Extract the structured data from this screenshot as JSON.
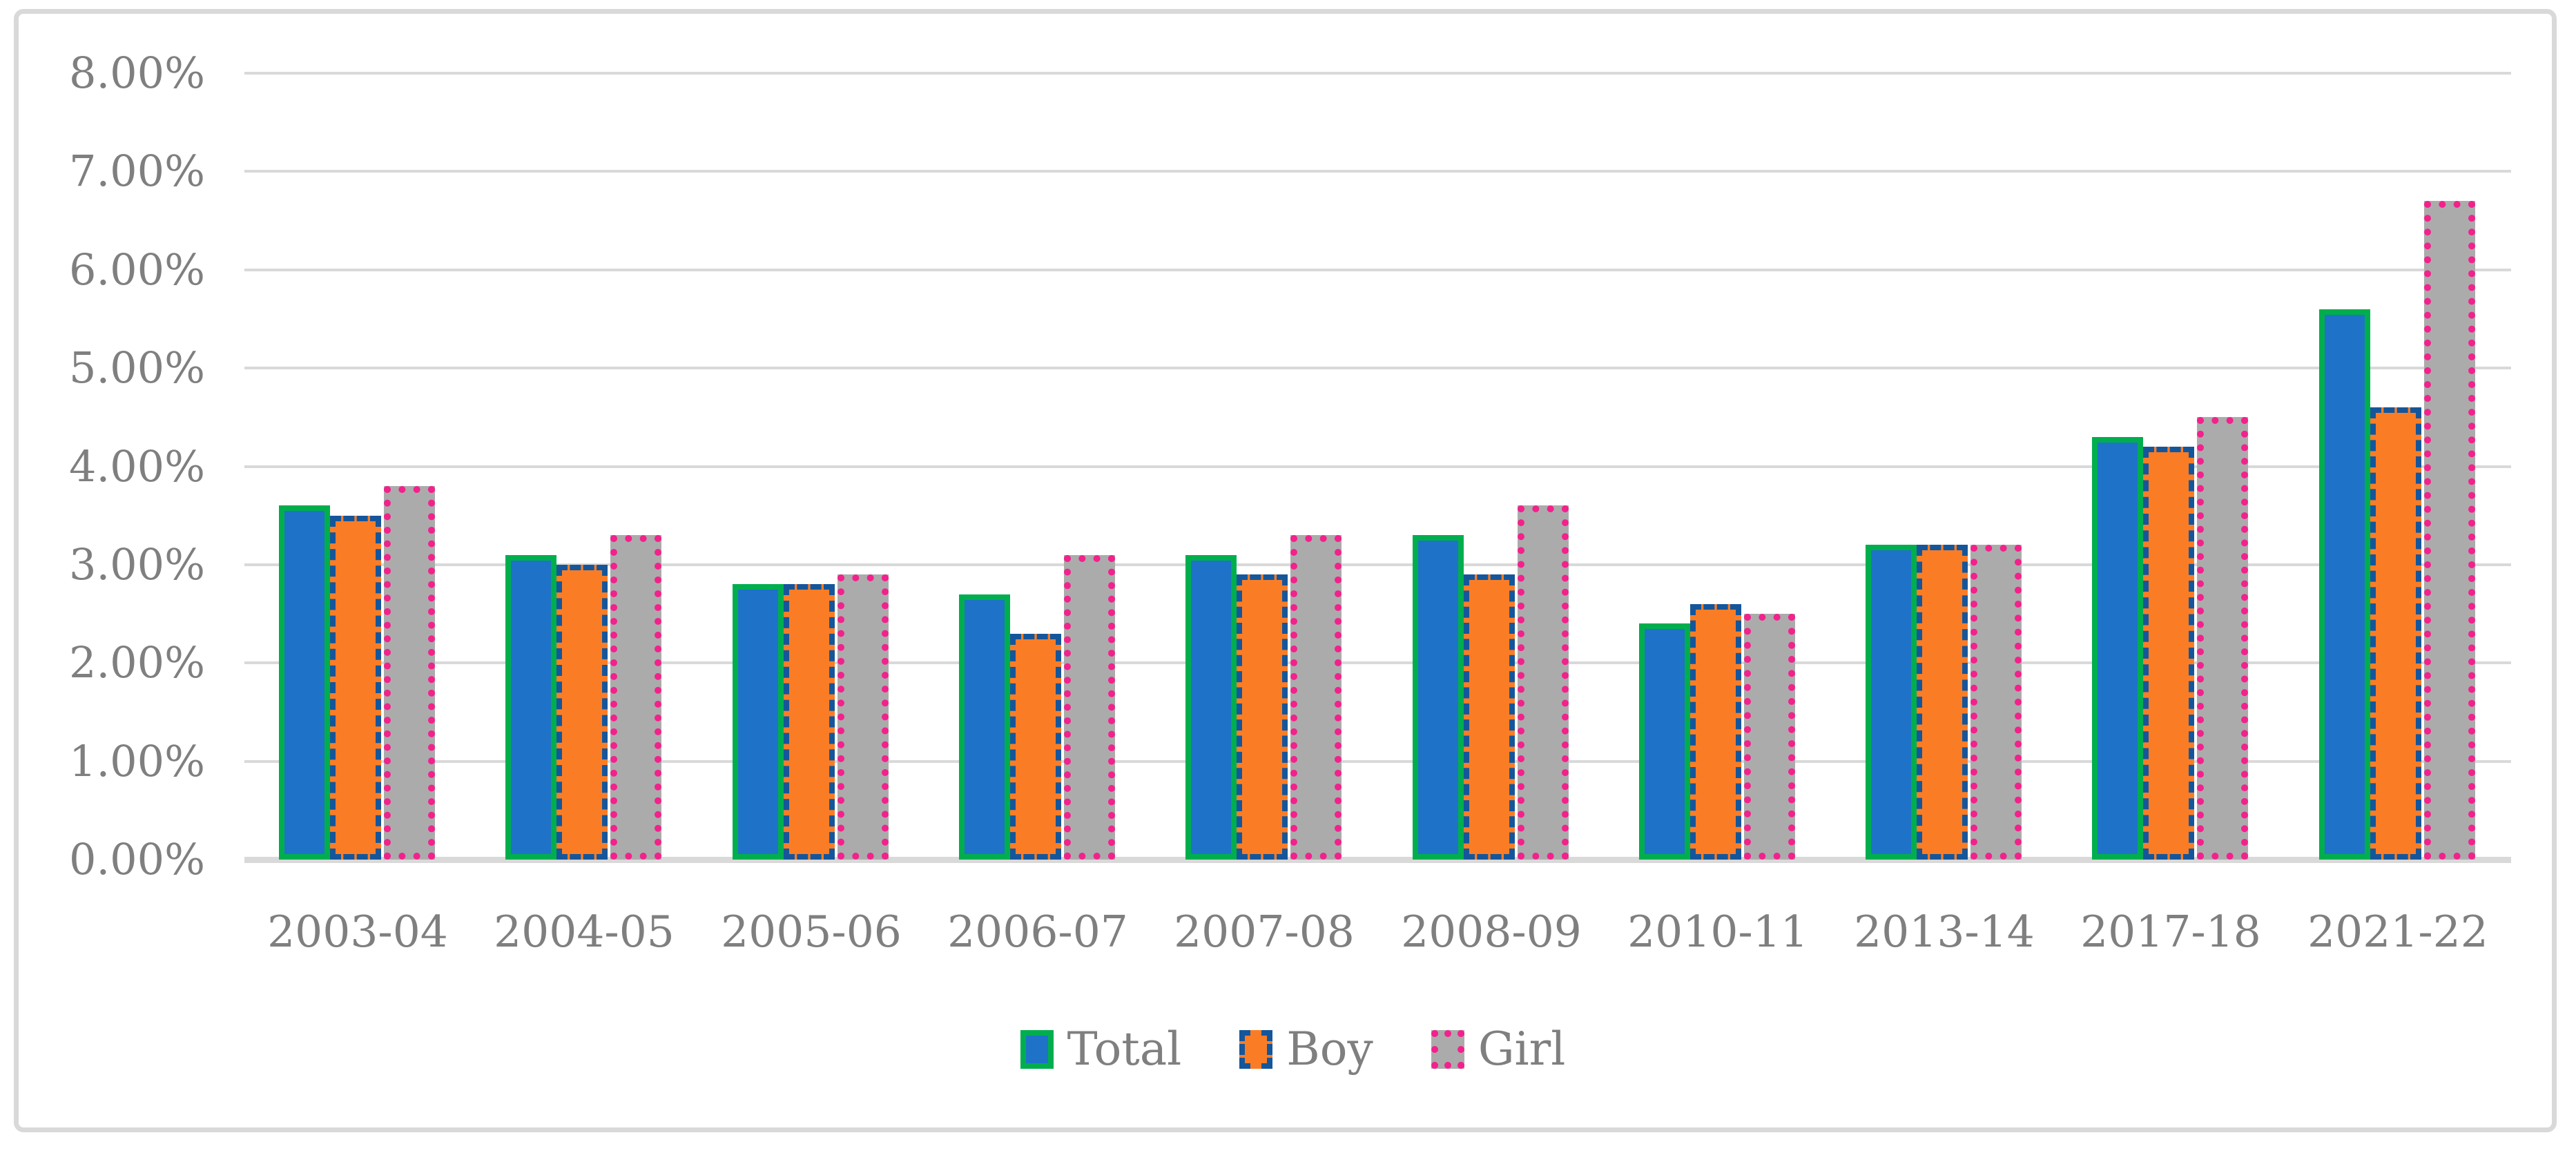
{
  "figure": {
    "background": "#FFFFFF",
    "border_color": "#D9D9D9",
    "text_color": "#7F7F7F",
    "gridline_color": "#D9D9D9"
  },
  "chart_data": {
    "type": "bar",
    "title": "",
    "xlabel": "",
    "ylabel": "",
    "categories": [
      "2003-04",
      "2004-05",
      "2005-06",
      "2006-07",
      "2007-08",
      "2008-09",
      "2010-11",
      "2013-14",
      "2017-18",
      "2021-22"
    ],
    "series": [
      {
        "name": "Total",
        "values": [
          3.6,
          3.1,
          2.8,
          2.7,
          3.1,
          3.3,
          2.4,
          3.2,
          4.3,
          5.6
        ],
        "fill": "#1E73C8",
        "border_color": "#00AE4E",
        "border_style": "solid"
      },
      {
        "name": "Boy",
        "values": [
          3.5,
          3.0,
          2.8,
          2.3,
          2.9,
          2.9,
          2.6,
          3.2,
          4.2,
          4.6
        ],
        "fill": "#FA7D26",
        "border_color": "#15569B",
        "border_style": "dashed"
      },
      {
        "name": "Girl",
        "values": [
          3.8,
          3.3,
          2.9,
          3.1,
          3.3,
          3.6,
          2.5,
          3.2,
          4.5,
          6.7
        ],
        "fill": "#ABABAB",
        "border_color": "#F3218C",
        "border_style": "dotted"
      }
    ],
    "ylim": [
      0,
      8
    ],
    "ytick_step": 1,
    "yticks": [
      {
        "v": 0,
        "label": "0.00%"
      },
      {
        "v": 1,
        "label": "1.00%"
      },
      {
        "v": 2,
        "label": "2.00%"
      },
      {
        "v": 3,
        "label": "3.00%"
      },
      {
        "v": 4,
        "label": "4.00%"
      },
      {
        "v": 5,
        "label": "5.00%"
      },
      {
        "v": 6,
        "label": "6.00%"
      },
      {
        "v": 7,
        "label": "7.00%"
      },
      {
        "v": 8,
        "label": "8.00%"
      }
    ],
    "grid": true,
    "legend_position": "bottom",
    "legend_labels": [
      "Total",
      "Boy",
      "Girl"
    ]
  }
}
